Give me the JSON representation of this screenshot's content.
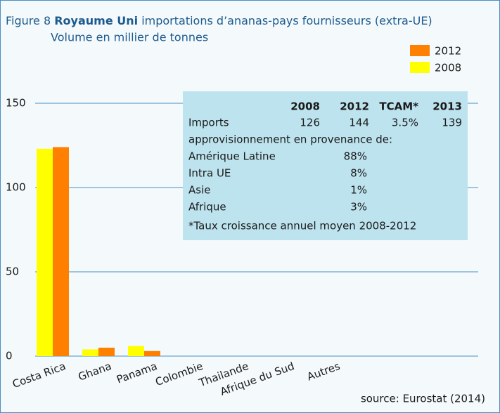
{
  "chart_data": {
    "type": "bar",
    "title_prefix": "Figure 8",
    "title_bold": "Royaume Uni",
    "title_rest": "importations d’ananas-pays fournisseurs (extra-UE)",
    "subtitle": "Volume en millier de tonnes",
    "categories": [
      "Costa Rica",
      "Ghana",
      "Panama",
      "Colombie",
      "Thailande",
      "Afrique du Sud",
      "Autres"
    ],
    "series": [
      {
        "name": "2012",
        "color": "#ff7f00",
        "values": [
          124,
          5,
          3,
          0,
          0,
          0,
          0
        ]
      },
      {
        "name": "2008",
        "color": "#ffff00",
        "values": [
          123,
          4,
          6,
          0,
          0,
          0,
          0
        ]
      }
    ],
    "ylim": [
      0,
      150
    ],
    "yticks": [
      0,
      50,
      100,
      150
    ],
    "grid": true,
    "table": {
      "header": [
        "2008",
        "2012",
        "TCAM*",
        "2013"
      ],
      "imports": [
        "Imports",
        "126",
        "144",
        "3.5%",
        "139"
      ],
      "sources_title": "approvisionnement en provenance de:",
      "sources": [
        [
          "Amérique Latine",
          "88%"
        ],
        [
          "Intra UE",
          "8%"
        ],
        [
          "Asie",
          "1%"
        ],
        [
          "Afrique",
          "3%"
        ]
      ],
      "footnote": "*Taux croissance annuel moyen 2008-2012"
    },
    "source": "source: Eurostat (2014)"
  }
}
